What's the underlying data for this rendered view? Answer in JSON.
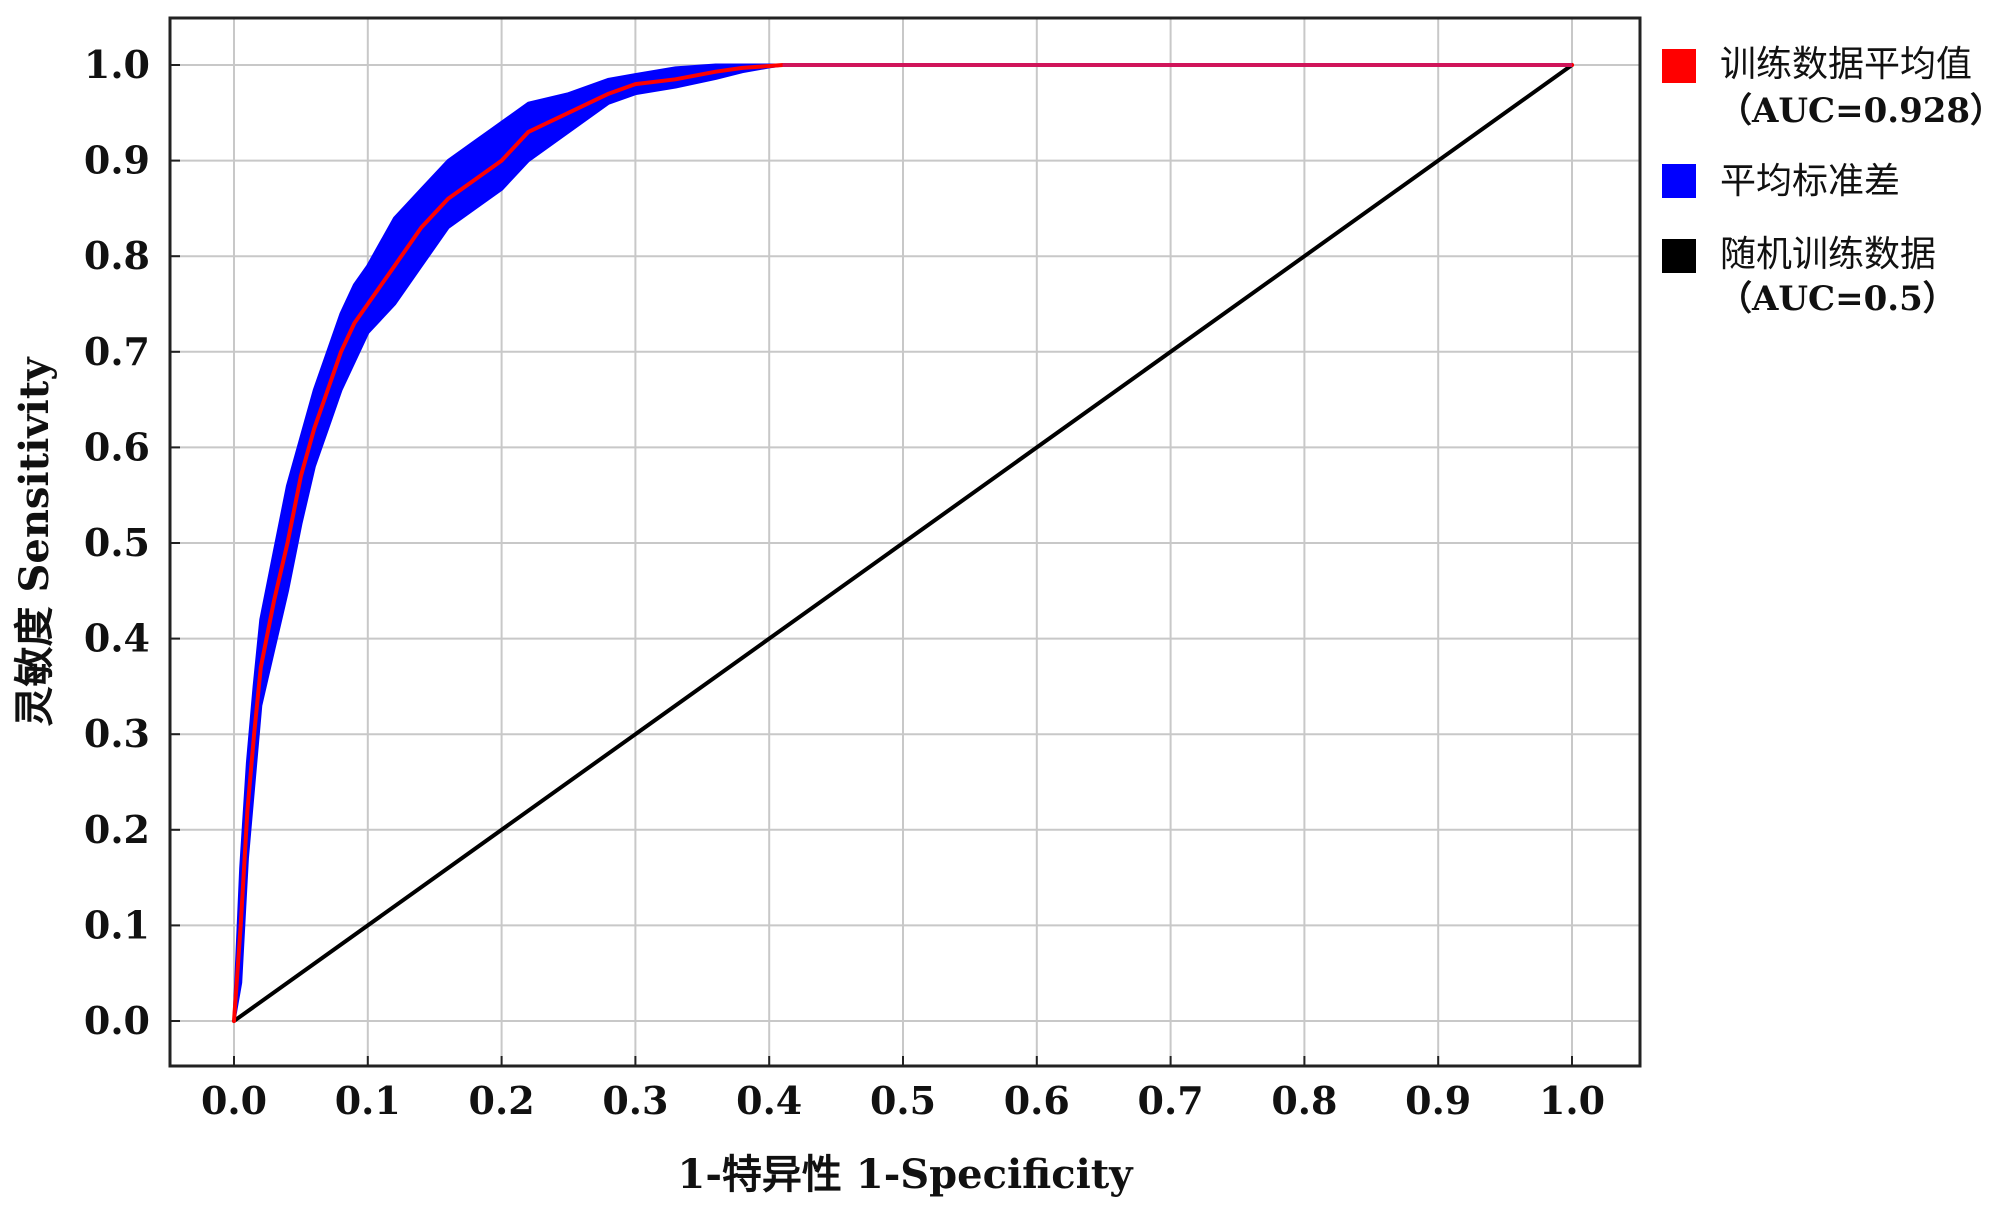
{
  "chart_data": {
    "type": "line",
    "title": "",
    "xlabel": "1-特异性 1-Specificity",
    "ylabel": "灵敏度 Sensitivity",
    "xlim": [
      0,
      1
    ],
    "ylim": [
      0,
      1
    ],
    "x_ticks": [
      "0.0",
      "0.1",
      "0.2",
      "0.3",
      "0.4",
      "0.5",
      "0.6",
      "0.7",
      "0.8",
      "0.9",
      "1.0"
    ],
    "y_ticks": [
      "0.0",
      "0.1",
      "0.2",
      "0.3",
      "0.4",
      "0.5",
      "0.6",
      "0.7",
      "0.8",
      "0.9",
      "1.0"
    ],
    "grid": true,
    "legend_position": "right",
    "series": [
      {
        "name": "训练数据平均值",
        "name_line2": "（AUC=0.928）",
        "color": "#ff0000",
        "x": [
          0,
          0.005,
          0.01,
          0.015,
          0.02,
          0.03,
          0.04,
          0.05,
          0.06,
          0.07,
          0.08,
          0.09,
          0.1,
          0.12,
          0.14,
          0.16,
          0.18,
          0.2,
          0.22,
          0.25,
          0.28,
          0.3,
          0.33,
          0.36,
          0.38,
          0.4,
          0.41,
          1.0
        ],
        "y": [
          0,
          0.1,
          0.22,
          0.3,
          0.37,
          0.44,
          0.5,
          0.57,
          0.62,
          0.66,
          0.7,
          0.73,
          0.75,
          0.79,
          0.83,
          0.86,
          0.88,
          0.9,
          0.93,
          0.95,
          0.97,
          0.98,
          0.985,
          0.993,
          0.997,
          0.999,
          1.0,
          1.0
        ]
      },
      {
        "name": "平均标准差",
        "color": "#0000ff",
        "x": [
          0,
          0.005,
          0.01,
          0.015,
          0.02,
          0.03,
          0.04,
          0.05,
          0.06,
          0.07,
          0.08,
          0.09,
          0.1,
          0.12,
          0.14,
          0.16,
          0.18,
          0.2,
          0.22,
          0.25,
          0.28,
          0.3,
          0.33,
          0.36,
          0.38,
          0.4,
          0.41,
          1.0
        ],
        "upper": [
          0,
          0.16,
          0.27,
          0.35,
          0.42,
          0.49,
          0.56,
          0.61,
          0.66,
          0.7,
          0.74,
          0.77,
          0.79,
          0.84,
          0.87,
          0.9,
          0.92,
          0.94,
          0.96,
          0.97,
          0.985,
          0.99,
          0.997,
          1.0,
          1.0,
          1.0,
          1.0,
          1.0
        ],
        "lower": [
          0,
          0.04,
          0.17,
          0.25,
          0.33,
          0.39,
          0.45,
          0.52,
          0.58,
          0.62,
          0.66,
          0.69,
          0.72,
          0.75,
          0.79,
          0.83,
          0.85,
          0.87,
          0.9,
          0.93,
          0.96,
          0.97,
          0.977,
          0.986,
          0.993,
          0.998,
          1.0,
          1.0
        ]
      },
      {
        "name": "随机训练数据",
        "name_line2": "（AUC=0.5）",
        "color": "#000000",
        "x": [
          0,
          1
        ],
        "y": [
          0,
          1
        ]
      }
    ]
  }
}
